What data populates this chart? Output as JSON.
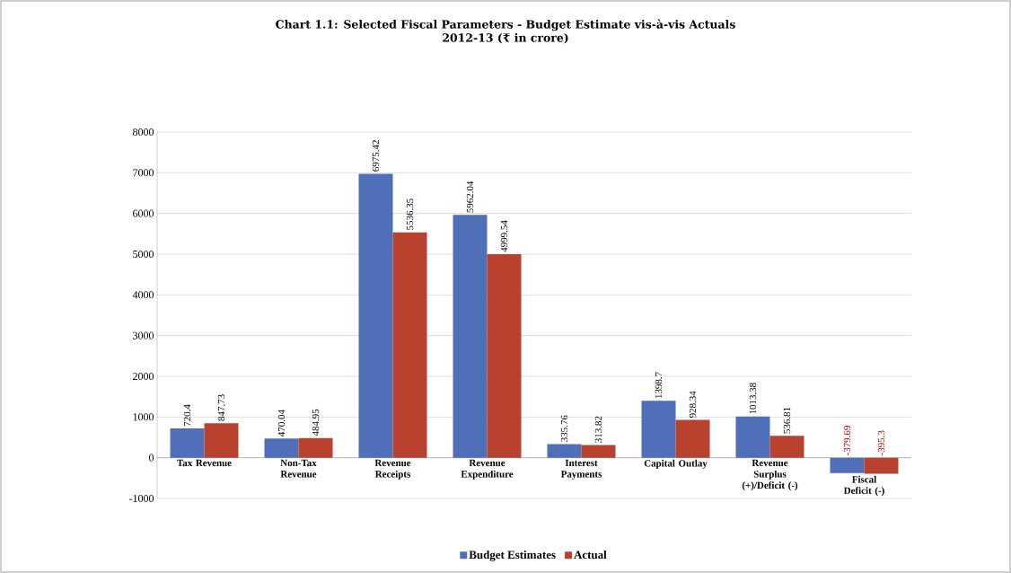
{
  "chart_data": {
    "type": "bar",
    "title": "Chart 1.1: Selected Fiscal Parameters - Budget Estimate vis-à-vis Actuals",
    "subtitle": "2012-13 (₹ in crore)",
    "categories": [
      "Tax Revenue",
      "Non-Tax Revenue",
      "Revenue Receipts",
      "Revenue Expenditure",
      "Interest Payments",
      "Capital Outlay",
      "Revenue Surplus (+)/Deficit (-)",
      "Fiscal Deficit (-)"
    ],
    "series": [
      {
        "name": "Budget Estimates",
        "color": "#4f6fb8",
        "values": [
          720.4,
          470.04,
          6975.42,
          5962.04,
          335.76,
          1398.7,
          1013.38,
          -379.69
        ],
        "value_labels": [
          "720.4",
          "470.04",
          "6975.42",
          "5962.04",
          "335.76",
          "1398.7",
          "1013.38",
          "-379.69"
        ]
      },
      {
        "name": "Actual",
        "color": "#b8422e",
        "values": [
          847.73,
          484.95,
          5536.35,
          4999.54,
          313.82,
          928.34,
          536.81,
          -395.3
        ],
        "value_labels": [
          "847.73",
          "484.95",
          "5536.35",
          "4999.54",
          "313.82",
          "928.34",
          "536.81",
          "-395.3"
        ]
      }
    ],
    "ylim": [
      -1000,
      8000
    ],
    "yticks": [
      -1000,
      0,
      1000,
      2000,
      3000,
      4000,
      5000,
      6000,
      7000,
      8000
    ],
    "grid": "y",
    "legend": "bottom"
  }
}
